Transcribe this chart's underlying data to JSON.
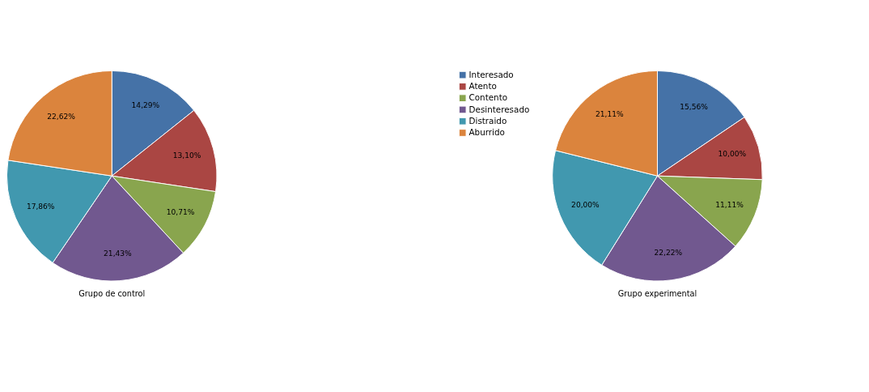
{
  "chart_data": [
    {
      "type": "pie",
      "title": "Grupo de control",
      "categories": [
        "Interesado",
        "Atento",
        "Contento",
        "Desinteresado",
        "Distraido",
        "Aburrido"
      ],
      "values": [
        14.29,
        13.1,
        10.71,
        21.43,
        17.86,
        22.62
      ],
      "value_labels": [
        "14,29%",
        "13,10%",
        "10,71%",
        "21,43%",
        "17,86%",
        "22,62%"
      ],
      "colors": [
        "#4572a7",
        "#aa4643",
        "#89a54e",
        "#71588f",
        "#4198af",
        "#db843d"
      ],
      "legend": "right"
    },
    {
      "type": "pie",
      "title": "Grupo experimental",
      "categories": [
        null,
        null,
        null,
        null,
        null,
        null
      ],
      "values": [
        15.56,
        10.0,
        11.11,
        22.22,
        20.0,
        21.11
      ],
      "value_labels": [
        "15,56%",
        "10,00%",
        "11,11%",
        "22,22%",
        "20,00%",
        "21,11%"
      ],
      "colors": [
        "#4572a7",
        "#aa4643",
        "#89a54e",
        "#71588f",
        "#4198af",
        "#db843d"
      ]
    }
  ]
}
